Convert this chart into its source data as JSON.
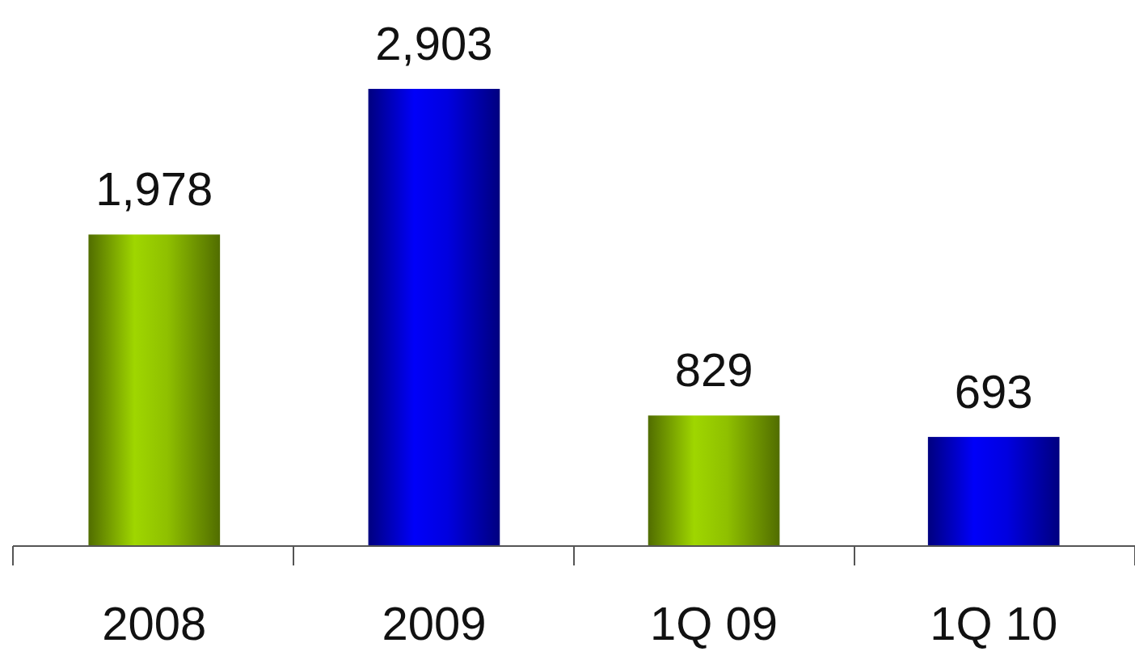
{
  "chart_data": {
    "type": "bar",
    "categories": [
      "2008",
      "2009",
      "1Q 09",
      "1Q 10"
    ],
    "values": [
      1978,
      2903,
      829,
      693
    ],
    "colors": [
      "#8fc000",
      "#0000e0",
      "#8fc000",
      "#0000e0"
    ],
    "value_labels": [
      "1,978",
      "2,903",
      "829",
      "693"
    ]
  }
}
